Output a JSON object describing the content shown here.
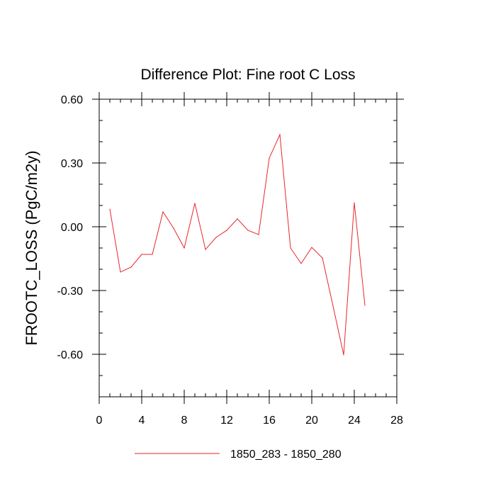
{
  "chart_data": {
    "type": "line",
    "title": "Difference Plot: Fine root C Loss",
    "xlabel": "",
    "ylabel": "FROOTC_LOSS  (PgC/m2y)",
    "xlim": [
      0,
      28
    ],
    "ylim": [
      -0.8,
      0.6
    ],
    "x_ticks": [
      0,
      4,
      8,
      12,
      16,
      20,
      24,
      28
    ],
    "x_tick_labels": [
      "0",
      "4",
      "8",
      "12",
      "16",
      "20",
      "24",
      "28"
    ],
    "y_ticks": [
      0.6,
      0.3,
      0.0,
      -0.3,
      -0.6
    ],
    "y_tick_labels": [
      "0.60",
      "0.30",
      "0.00",
      "-0.30",
      "-0.60"
    ],
    "grid": false,
    "legend": "bottom",
    "series": [
      {
        "name": "1850_283 - 1850_280",
        "color": "#e8262b",
        "x": [
          1,
          2,
          3,
          4,
          5,
          6,
          7,
          8,
          9,
          10,
          11,
          12,
          13,
          14,
          15,
          16,
          17,
          18,
          19,
          20,
          21,
          22,
          23,
          24,
          25
        ],
        "y": [
          0.083,
          -0.213,
          -0.19,
          -0.13,
          -0.13,
          0.07,
          -0.007,
          -0.1,
          0.11,
          -0.107,
          -0.05,
          -0.017,
          0.037,
          -0.017,
          -0.037,
          0.323,
          0.433,
          -0.1,
          -0.173,
          -0.097,
          -0.147,
          -0.373,
          -0.603,
          0.113,
          -0.37
        ]
      }
    ]
  }
}
